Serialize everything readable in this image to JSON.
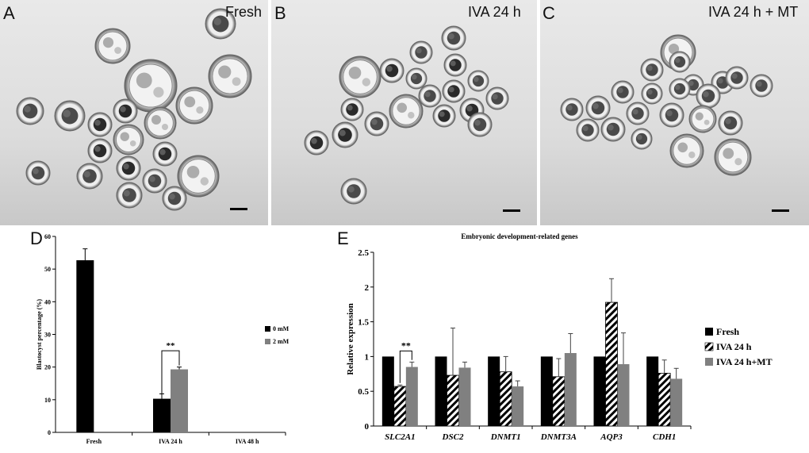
{
  "panels": {
    "A": {
      "letter": "A",
      "condition": "Fresh"
    },
    "B": {
      "letter": "B",
      "condition": "IVA 24 h"
    },
    "C": {
      "letter": "C",
      "condition": "IVA 24 h + MT"
    },
    "D": {
      "letter": "D"
    },
    "E": {
      "letter": "E"
    }
  },
  "chart_data": [
    {
      "panel": "D",
      "type": "bar",
      "title": "",
      "xlabel": "",
      "ylabel": "Blastocyst percentage (%)",
      "ylim": [
        0,
        60
      ],
      "yticks": [
        0,
        10,
        20,
        30,
        40,
        50,
        60
      ],
      "categories": [
        "Fresh",
        "IVA 24 h",
        "IVA 48 h"
      ],
      "legend_position": "right",
      "series": [
        {
          "name": "0 mM",
          "color": "#000000",
          "values": [
            52.7,
            10.3,
            0
          ],
          "errors": [
            3.5,
            1.5,
            0
          ]
        },
        {
          "name": "2 mM",
          "color": "#808080",
          "values": [
            null,
            19.3,
            0
          ],
          "errors": [
            null,
            0.7,
            0
          ]
        }
      ],
      "annotations": [
        {
          "text": "**",
          "category": "IVA 24 h"
        }
      ]
    },
    {
      "panel": "E",
      "type": "bar",
      "title": "Embryonic  development-related genes",
      "xlabel": "",
      "ylabel": "Relative expression",
      "ylim": [
        0,
        2.5
      ],
      "yticks": [
        "0",
        "0.5",
        "1",
        "1.5",
        "2",
        "2.5"
      ],
      "categories": [
        "SLC2A1",
        "DSC2",
        "DNMT1",
        "DNMT3A",
        "AQP3",
        "CDH1"
      ],
      "legend_position": "right",
      "series": [
        {
          "name": "Fresh",
          "color": "#000000",
          "pattern": "solid",
          "values": [
            1,
            1,
            1,
            1,
            1,
            1
          ],
          "errors": [
            0,
            0,
            0,
            0,
            0,
            0
          ]
        },
        {
          "name": "IVA 24 h",
          "color": "#000000",
          "pattern": "hatched",
          "values": [
            0.57,
            0.73,
            0.78,
            0.71,
            1.78,
            0.76
          ],
          "errors": [
            0.02,
            0.68,
            0.22,
            0.26,
            0.34,
            0.19
          ]
        },
        {
          "name": "IVA 24 h+MT",
          "color": "#808080",
          "pattern": "solid",
          "values": [
            0.85,
            0.84,
            0.57,
            1.05,
            0.89,
            0.68
          ],
          "errors": [
            0.07,
            0.08,
            0.08,
            0.28,
            0.45,
            0.15
          ]
        }
      ],
      "annotations": [
        {
          "text": "**",
          "category": "SLC2A1"
        }
      ]
    }
  ]
}
